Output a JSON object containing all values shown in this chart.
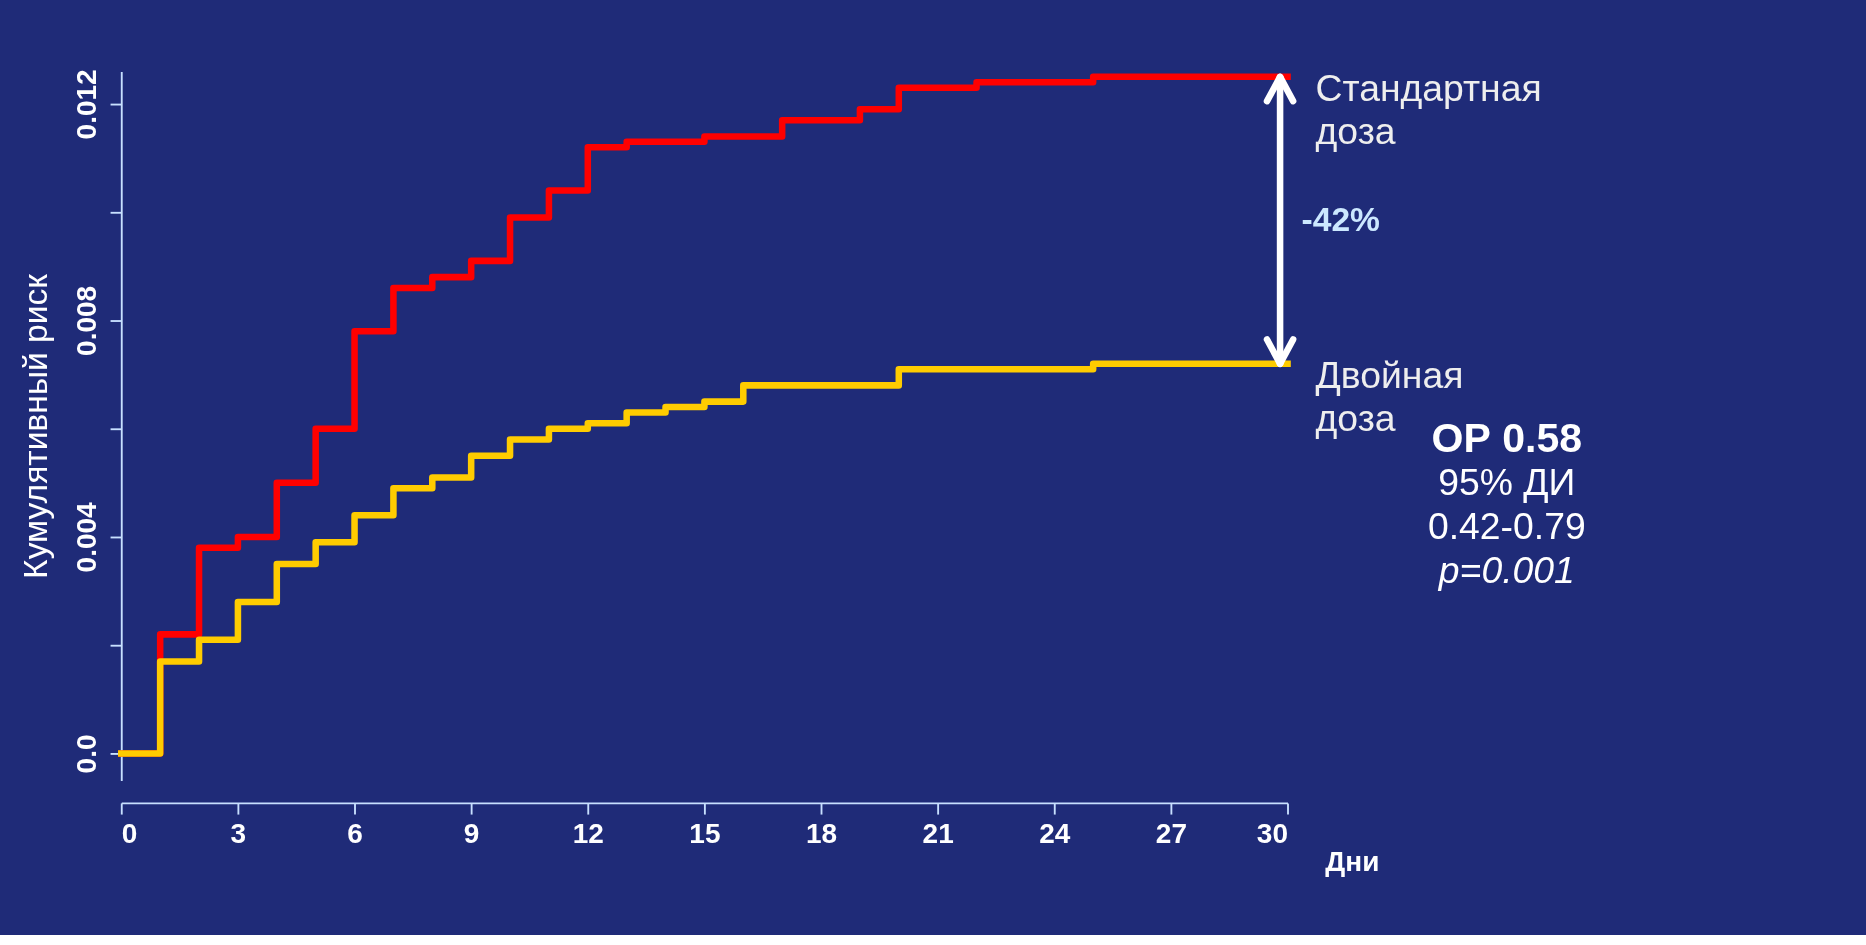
{
  "chart_data": {
    "type": "step",
    "xlabel": "Дни",
    "ylabel": "Кумулятивный риск",
    "xlim": [
      0,
      30
    ],
    "xticks": [
      0,
      3,
      6,
      9,
      12,
      15,
      18,
      21,
      24,
      27,
      30
    ],
    "ylim": [
      -0.0005,
      0.0126
    ],
    "yticks": [
      {
        "value": 0,
        "label": "0.0"
      },
      {
        "value": 0.002,
        "label": null
      },
      0.004,
      {
        "value": 0.006,
        "label": null
      },
      0.008,
      {
        "value": 0.01,
        "label": null
      },
      0.012
    ],
    "grid": false,
    "legend": false,
    "marker": "none",
    "line_style": "solid",
    "series": [
      {
        "name": "Стандартная доза",
        "color": "#ff0000",
        "x": [
          0,
          1,
          2,
          3,
          4,
          5,
          6,
          7,
          8,
          9,
          10,
          11,
          12,
          13,
          15,
          17,
          19,
          20,
          22,
          25,
          30
        ],
        "values": [
          0,
          0.0022,
          0.0038,
          0.004,
          0.005,
          0.006,
          0.0078,
          0.0086,
          0.0088,
          0.0091,
          0.0099,
          0.0104,
          0.0112,
          0.0113,
          0.0114,
          0.0117,
          0.0119,
          0.0123,
          0.0124,
          0.0125,
          0.0125
        ]
      },
      {
        "name": "Двойная доза",
        "color": "#ffcc00",
        "x": [
          0,
          1,
          2,
          3,
          4,
          5,
          6,
          7,
          8,
          9,
          10,
          11,
          12,
          13,
          14,
          15,
          16,
          20,
          25,
          30
        ],
        "values": [
          0,
          0.0017,
          0.0021,
          0.0028,
          0.0035,
          0.0039,
          0.0044,
          0.0049,
          0.0051,
          0.0055,
          0.0058,
          0.006,
          0.0061,
          0.0063,
          0.0064,
          0.0065,
          0.0068,
          0.0071,
          0.0072,
          0.0072
        ]
      }
    ],
    "annotations": [
      "-42%",
      "ОР 0.58",
      "95% ДИ",
      "0.42-0.79",
      "p=0.001"
    ]
  }
}
